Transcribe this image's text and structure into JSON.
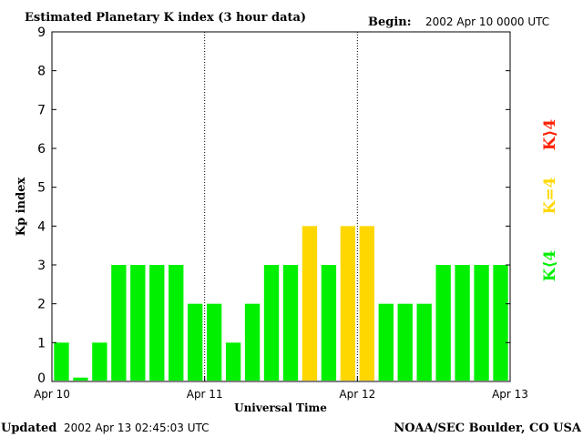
{
  "header": {
    "title": "Estimated Planetary K index (3 hour data)",
    "begin_label": "Begin:",
    "begin_value": "2002 Apr 10 0000 UTC"
  },
  "footer": {
    "updated_label": "Updated",
    "updated_value": "2002 Apr 13 02:45:03 UTC",
    "source": "NOAA/SEC Boulder, CO USA"
  },
  "legend": {
    "low": "K⟨4",
    "mid": "K=4",
    "high": "K⟩4"
  },
  "colors": {
    "low": "#00f000",
    "mid": "#ffd700",
    "high": "#ff2000",
    "divider": "#000000"
  },
  "chart_data": {
    "type": "bar",
    "title": "Estimated Planetary K index (3 hour data)",
    "xlabel": "Universal Time",
    "ylabel": "Kp index",
    "ylim": [
      0,
      9
    ],
    "yticks": [
      "0",
      "1",
      "2",
      "3",
      "4",
      "5",
      "6",
      "7",
      "8",
      "9"
    ],
    "xticks": [
      "Apr 10",
      "Apr 11",
      "Apr 12",
      "Apr 13"
    ],
    "interval_hours": 3,
    "day_dividers": [
      "Apr 11",
      "Apr 12"
    ],
    "values": [
      1,
      0.1,
      1,
      3,
      3,
      3,
      3,
      2,
      2,
      1,
      2,
      3,
      3,
      4,
      3,
      4,
      4,
      2,
      2,
      2,
      3,
      3,
      3,
      3
    ],
    "grid": false
  }
}
